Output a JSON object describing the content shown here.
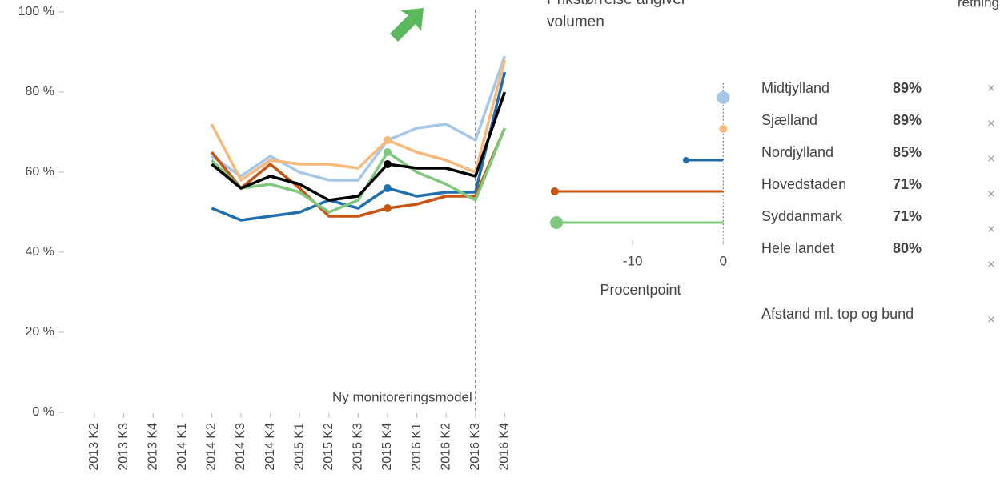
{
  "chart_data": [
    {
      "type": "line",
      "categories": [
        "2013 K2",
        "2013 K3",
        "2013 K4",
        "2014 K1",
        "2014 K2",
        "2014 K3",
        "2014 K4",
        "2015 K1",
        "2015 K2",
        "2015 K3",
        "2015 K4",
        "2016 K1",
        "2016 K2",
        "2016 K3",
        "2016 K4"
      ],
      "ylim": [
        0,
        100
      ],
      "yticks": [
        {
          "value": 0,
          "label": "0 %"
        },
        {
          "value": 20,
          "label": "20 %"
        },
        {
          "value": 40,
          "label": "40 %"
        },
        {
          "value": 60,
          "label": "60 %"
        },
        {
          "value": 80,
          "label": "80 %"
        },
        {
          "value": 100,
          "label": "100 %"
        }
      ],
      "annotation": "Ny monitoreringsmodel",
      "series": [
        {
          "name": "Midtjylland",
          "color": "#a6c8e8",
          "legend_label": "89%",
          "values": [
            null,
            null,
            null,
            null,
            64,
            59,
            64,
            60,
            58,
            58,
            68,
            71,
            72,
            68,
            89
          ]
        },
        {
          "name": "Sjælland",
          "color": "#f9b97a",
          "legend_label": "89%",
          "values": [
            null,
            null,
            null,
            null,
            72,
            58,
            63,
            62,
            62,
            61,
            68,
            65,
            63,
            60,
            88
          ]
        },
        {
          "name": "Nordjylland",
          "color": "#1f6fb0",
          "legend_label": "85%",
          "values": [
            null,
            null,
            null,
            null,
            51,
            48,
            49,
            50,
            53,
            51,
            56,
            54,
            55,
            55,
            85
          ]
        },
        {
          "name": "Hovedstaden",
          "color": "#c85512",
          "legend_label": "71%",
          "values": [
            null,
            null,
            null,
            null,
            65,
            56,
            62,
            56,
            49,
            49,
            51,
            52,
            54,
            54,
            71
          ]
        },
        {
          "name": "Syddanmark",
          "color": "#7fc97f",
          "legend_label": "71%",
          "values": [
            null,
            null,
            null,
            null,
            63,
            56,
            57,
            55,
            50,
            53,
            65,
            60,
            57,
            53,
            71
          ]
        },
        {
          "name": "Hele landet",
          "color": "#000000",
          "legend_label": "80%",
          "values": [
            null,
            null,
            null,
            null,
            62,
            56,
            59,
            57,
            53,
            54,
            62,
            61,
            61,
            59,
            80
          ]
        }
      ]
    },
    {
      "type": "dot",
      "subtitle": "Prikstørrelse angiver volumen",
      "xlabel": "Procentpoint",
      "xlim": [
        -20,
        0.5
      ],
      "xticks": [
        -10,
        0
      ],
      "values": [
        0,
        0,
        -4.1,
        -18.6,
        -18.4
      ],
      "sizes": [
        8,
        5,
        4,
        5,
        8
      ]
    }
  ],
  "legend_extra": "Afstand ml. top og bund",
  "corner_text": "retning"
}
